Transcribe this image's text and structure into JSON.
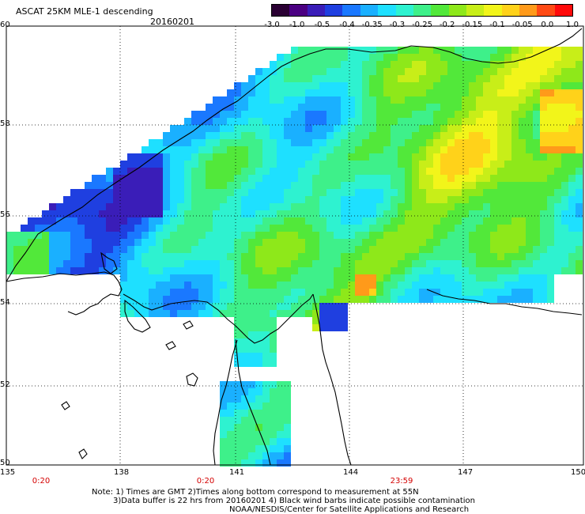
{
  "header": {
    "title": "ASCAT 25KM MLE-1 descending",
    "date": "20160201"
  },
  "colorbar": {
    "colors": [
      "#2a0033",
      "#4b0082",
      "#3a1db8",
      "#1f3fe0",
      "#1a78ff",
      "#1ab0ff",
      "#1ee0ff",
      "#2ef2d0",
      "#3ef08a",
      "#52e83a",
      "#8ee81a",
      "#c8ee18",
      "#f2f51a",
      "#ffd21a",
      "#ff9a1a",
      "#ff4a14",
      "#ff0a0a"
    ],
    "labels": [
      "-3.0",
      "-1.0",
      "-0.5",
      "-0.4",
      "-0.35",
      "-0.3",
      "-0.25",
      "-0.2",
      "-0.15",
      "-0.1",
      "-0.05",
      "0.0",
      "1.0"
    ]
  },
  "map": {
    "lat_labels": [
      "60",
      "58",
      "56",
      "54",
      "52",
      "50"
    ],
    "lon_labels": [
      "135",
      "138",
      "141",
      "144",
      "147",
      "150"
    ],
    "time_labels": [
      "0:20",
      "0:20",
      "23:59"
    ]
  },
  "notes": {
    "line1": "Note: 1) Times are GMT 2)Times along bottom correspond to measurement at 55N",
    "line2": "3)Data buffer is 22 hrs from 20160201 4) Black wind barbs indicate possible contamination",
    "line3": "NOAA/NESDIS/Center for Satellite Applications and Research"
  }
}
